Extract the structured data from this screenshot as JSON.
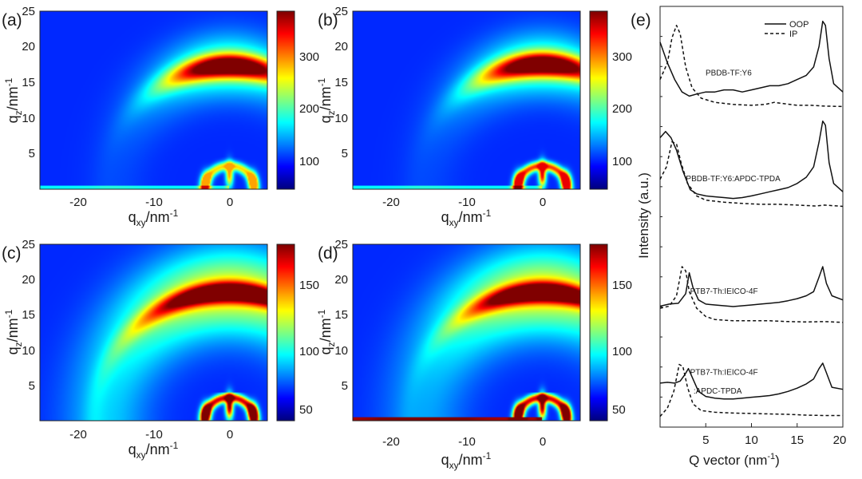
{
  "chart_data": [
    {
      "panel": "(a)",
      "type": "heatmap",
      "xlabel_main": "q",
      "xlabel_sub": "xy",
      "xlabel_unit": "/nm",
      "xlabel_exp": "-1",
      "ylabel_main": "q",
      "ylabel_sub": "z",
      "ylabel_unit": "/nm",
      "ylabel_exp": "-1",
      "xlim": [
        -25,
        5
      ],
      "ylim": [
        0,
        25
      ],
      "x_ticks": [
        "-20",
        "-10",
        "0"
      ],
      "y_ticks": [
        "5",
        "10",
        "15",
        "20",
        "25"
      ],
      "colorbar_range": [
        30,
        370
      ],
      "colorbar_ticks": [
        "100",
        "200",
        "300"
      ],
      "colorbar_tick_values": [
        100,
        200,
        300
      ],
      "features": {
        "arc_qz": 17.3,
        "arc_peak": 370,
        "arc_halfwidth": 5.5,
        "arc_shape": "compact",
        "near_origin_peak": 260,
        "near_origin_extent": 4.5,
        "film_line": "faint"
      }
    },
    {
      "panel": "(b)",
      "type": "heatmap",
      "xlabel_main": "q",
      "xlabel_sub": "xy",
      "xlabel_unit": "/nm",
      "xlabel_exp": "-1",
      "ylabel_main": "q",
      "ylabel_sub": "z",
      "ylabel_unit": "/nm",
      "ylabel_exp": "-1",
      "xlim": [
        -25,
        5
      ],
      "ylim": [
        0,
        25
      ],
      "x_ticks": [
        "-20",
        "-10",
        "0"
      ],
      "y_ticks": [
        "5",
        "10",
        "15",
        "20",
        "25"
      ],
      "colorbar_range": [
        30,
        370
      ],
      "colorbar_ticks": [
        "100",
        "200",
        "300"
      ],
      "colorbar_tick_values": [
        100,
        200,
        300
      ],
      "features": {
        "arc_qz": 17.5,
        "arc_peak": 370,
        "arc_halfwidth": 5.5,
        "arc_shape": "compact",
        "near_origin_peak": 330,
        "near_origin_extent": 4.8,
        "film_line": "faint"
      }
    },
    {
      "panel": "(c)",
      "type": "heatmap",
      "xlabel_main": "q",
      "xlabel_sub": "xy",
      "xlabel_unit": "/nm",
      "xlabel_exp": "-1",
      "ylabel_main": "q",
      "ylabel_sub": "z",
      "ylabel_unit": "/nm",
      "ylabel_exp": "-1",
      "xlim": [
        -25,
        5
      ],
      "ylim": [
        0,
        25
      ],
      "x_ticks": [
        "-20",
        "-10",
        "0"
      ],
      "y_ticks": [
        "5",
        "10",
        "15",
        "20",
        "25"
      ],
      "colorbar_range": [
        30,
        185
      ],
      "colorbar_ticks": [
        "50",
        "100",
        "150"
      ],
      "colorbar_tick_values": [
        50,
        100,
        150
      ],
      "features": {
        "arc_qz": 18.2,
        "arc_peak": 185,
        "arc_halfwidth": 7.5,
        "arc_shape": "broad",
        "near_origin_peak": 185,
        "near_origin_extent": 4.0,
        "film_line": "none"
      }
    },
    {
      "panel": "(d)",
      "type": "heatmap",
      "xlabel_main": "q",
      "xlabel_sub": "xy",
      "xlabel_unit": "/nm",
      "xlabel_exp": "-1",
      "ylabel_main": "q",
      "ylabel_sub": "z",
      "ylabel_unit": "/nm",
      "ylabel_exp": "-1",
      "xlim": [
        -25,
        5
      ],
      "ylim": [
        0,
        25
      ],
      "x_ticks": [
        "-20",
        "-10",
        "0"
      ],
      "y_ticks": [
        "5",
        "10",
        "15",
        "20",
        "25"
      ],
      "colorbar_range": [
        30,
        185
      ],
      "colorbar_ticks": [
        "50",
        "100",
        "150"
      ],
      "colorbar_tick_values": [
        50,
        100,
        150
      ],
      "features": {
        "arc_qz": 18.2,
        "arc_peak": 185,
        "arc_halfwidth": 6.5,
        "arc_shape": "broad",
        "near_origin_peak": 185,
        "near_origin_extent": 4.0,
        "film_line": "bright"
      }
    },
    {
      "panel": "(e)",
      "type": "line",
      "title": "",
      "xlabel": "Q vector (nm",
      "xlabel_exp": "-1",
      "xlabel_close": ")",
      "ylabel": "Intensity (a.u.)",
      "xlim": [
        0,
        20
      ],
      "ylim": [
        0,
        100
      ],
      "x_ticks": [
        "5",
        "10",
        "15",
        "20"
      ],
      "x_tick_values": [
        5,
        10,
        15,
        20
      ],
      "legend": [
        {
          "label": "OOP",
          "style": "solid"
        },
        {
          "label": "IP",
          "style": "dashed"
        }
      ],
      "legend_position": "top-right",
      "series": [
        {
          "name": "PBDB-TF:Y6 OOP",
          "group": "PBDB-TF:Y6",
          "style": "solid",
          "points": [
            [
              0,
              92
            ],
            [
              0.8,
              87
            ],
            [
              1.6,
              83
            ],
            [
              2.4,
              80
            ],
            [
              3.2,
              79
            ],
            [
              4,
              79.5
            ],
            [
              5,
              80
            ],
            [
              6,
              80
            ],
            [
              7,
              80.5
            ],
            [
              8,
              80.5
            ],
            [
              9,
              80
            ],
            [
              10,
              80.5
            ],
            [
              11,
              81
            ],
            [
              12,
              81.5
            ],
            [
              13,
              81.5
            ],
            [
              14,
              82
            ],
            [
              15,
              83
            ],
            [
              16,
              84
            ],
            [
              16.8,
              86
            ],
            [
              17.4,
              91
            ],
            [
              17.8,
              97
            ],
            [
              18.1,
              96
            ],
            [
              18.5,
              88
            ],
            [
              19,
              82
            ],
            [
              20,
              80
            ]
          ]
        },
        {
          "name": "PBDB-TF:Y6 IP",
          "group": "PBDB-TF:Y6",
          "style": "dashed",
          "points": [
            [
              0,
              83
            ],
            [
              0.8,
              87
            ],
            [
              1.3,
              93
            ],
            [
              1.8,
              96
            ],
            [
              2.2,
              94
            ],
            [
              2.8,
              86
            ],
            [
              3.5,
              81
            ],
            [
              4.5,
              78.5
            ],
            [
              6,
              77.5
            ],
            [
              8,
              77
            ],
            [
              10,
              76.8
            ],
            [
              11.5,
              77
            ],
            [
              12.5,
              77.5
            ],
            [
              13.5,
              77.2
            ],
            [
              15,
              76.8
            ],
            [
              16.5,
              76.8
            ],
            [
              18,
              76.6
            ],
            [
              20,
              76.5
            ]
          ]
        },
        {
          "name": "PBDB-TF:Y6:APDC-TPDA OOP",
          "group": "PBDB-TF:Y6:APDC-TPDA",
          "style": "solid",
          "points": [
            [
              0,
              69
            ],
            [
              0.6,
              70.5
            ],
            [
              1.2,
              69
            ],
            [
              1.8,
              66
            ],
            [
              2.5,
              61
            ],
            [
              3.3,
              56.5
            ],
            [
              4,
              55.5
            ],
            [
              5,
              55
            ],
            [
              6,
              54.8
            ],
            [
              7,
              54.6
            ],
            [
              8,
              54.4
            ],
            [
              9,
              54.6
            ],
            [
              10,
              55
            ],
            [
              11,
              55.5
            ],
            [
              12,
              56
            ],
            [
              13,
              56.5
            ],
            [
              14,
              57
            ],
            [
              15,
              58
            ],
            [
              16,
              59.5
            ],
            [
              16.8,
              62
            ],
            [
              17.4,
              68
            ],
            [
              17.8,
              73
            ],
            [
              18.1,
              72
            ],
            [
              18.5,
              63
            ],
            [
              19,
              58
            ],
            [
              20,
              56
            ]
          ]
        },
        {
          "name": "PBDB-TF:Y6:APDC-TPDA IP",
          "group": "PBDB-TF:Y6:APDC-TPDA",
          "style": "dashed",
          "points": [
            [
              0,
              59
            ],
            [
              0.7,
              62
            ],
            [
              1.3,
              68
            ],
            [
              1.8,
              67.5
            ],
            [
              2.3,
              63
            ],
            [
              3,
              58
            ],
            [
              4,
              55
            ],
            [
              5,
              54
            ],
            [
              7,
              53.5
            ],
            [
              9,
              53.2
            ],
            [
              11,
              53
            ],
            [
              13,
              53
            ],
            [
              15,
              52.8
            ],
            [
              17,
              52.6
            ],
            [
              18,
              52.8
            ],
            [
              20,
              52.5
            ]
          ]
        },
        {
          "name": "PTB7-Th:IEICO-4F OOP",
          "group": "PTB7-Th:IEICO-4F",
          "style": "solid",
          "points": [
            [
              0,
              28.5
            ],
            [
              1,
              29
            ],
            [
              2,
              29.2
            ],
            [
              2.8,
              31.5
            ],
            [
              3.2,
              36.5
            ],
            [
              3.6,
              33
            ],
            [
              4.2,
              30
            ],
            [
              5,
              29
            ],
            [
              6,
              28.8
            ],
            [
              7,
              28.6
            ],
            [
              8,
              28.4
            ],
            [
              9,
              28.6
            ],
            [
              10,
              28.8
            ],
            [
              11,
              29
            ],
            [
              12,
              29.2
            ],
            [
              13,
              29.4
            ],
            [
              14,
              29.8
            ],
            [
              15,
              30.3
            ],
            [
              16,
              31
            ],
            [
              16.8,
              32
            ],
            [
              17.4,
              35.5
            ],
            [
              17.8,
              38
            ],
            [
              18.2,
              34
            ],
            [
              18.8,
              31
            ],
            [
              20,
              30
            ]
          ]
        },
        {
          "name": "PTB7-Th:IEICO-4F IP",
          "group": "PTB7-Th:IEICO-4F",
          "style": "dashed",
          "points": [
            [
              0,
              28
            ],
            [
              1,
              28.5
            ],
            [
              1.8,
              31
            ],
            [
              2.4,
              38
            ],
            [
              2.8,
              37
            ],
            [
              3.2,
              32
            ],
            [
              4,
              28
            ],
            [
              5,
              26
            ],
            [
              6,
              25.3
            ],
            [
              8,
              25
            ],
            [
              10,
              25
            ],
            [
              12,
              25
            ],
            [
              14,
              24.8
            ],
            [
              16,
              24.7
            ],
            [
              18,
              24.8
            ],
            [
              20,
              24.6
            ]
          ]
        },
        {
          "name": "PTB7-Th:IEICO-4F:APDC-TPDA OOP",
          "group": "PTB7-Th:IEICO-4F:APDC-TPDA",
          "style": "solid",
          "points": [
            [
              0,
              10
            ],
            [
              0.8,
              10.2
            ],
            [
              1.6,
              10
            ],
            [
              2.2,
              10.5
            ],
            [
              2.7,
              12
            ],
            [
              3.1,
              13.5
            ],
            [
              3.6,
              11
            ],
            [
              4.2,
              8
            ],
            [
              5,
              6.8
            ],
            [
              6,
              6.4
            ],
            [
              7,
              6.2
            ],
            [
              8,
              6.2
            ],
            [
              9,
              6.4
            ],
            [
              10,
              6.6
            ],
            [
              11,
              6.8
            ],
            [
              12,
              7
            ],
            [
              13,
              7.4
            ],
            [
              14,
              8
            ],
            [
              15,
              8.8
            ],
            [
              16,
              9.8
            ],
            [
              16.8,
              11
            ],
            [
              17.4,
              13.5
            ],
            [
              17.8,
              14.8
            ],
            [
              18.2,
              12.5
            ],
            [
              18.8,
              9
            ],
            [
              20,
              8.5
            ]
          ]
        },
        {
          "name": "PTB7-Th:IEICO-4F:APDC-TPDA IP",
          "group": "PTB7-Th:IEICO-4F:APDC-TPDA",
          "style": "dashed",
          "points": [
            [
              0,
              2
            ],
            [
              0.8,
              4
            ],
            [
              1.5,
              8
            ],
            [
              2.1,
              14.5
            ],
            [
              2.5,
              14
            ],
            [
              3,
              9
            ],
            [
              3.6,
              5
            ],
            [
              4.5,
              3.4
            ],
            [
              6,
              3
            ],
            [
              8,
              2.8
            ],
            [
              10,
              2.7
            ],
            [
              12,
              2.6
            ],
            [
              14,
              2.5
            ],
            [
              16,
              2.3
            ],
            [
              18,
              2.2
            ],
            [
              20,
              2.2
            ]
          ]
        }
      ],
      "curve_labels": [
        {
          "text": "PBDB-TF:Y6",
          "x": 7.5,
          "y": 84
        },
        {
          "text": "PBDB-TF:Y6:APDC-TPDA",
          "x": 8,
          "y": 58.5
        },
        {
          "text": "PTB7-Th:IEICO-4F",
          "x": 7,
          "y": 31.5
        },
        {
          "text": "PTB7-Th:IEICO-4F",
          "x": 7,
          "y": 12
        },
        {
          "text": ":APDC-TPDA",
          "x": 6.3,
          "y": 7.5
        }
      ]
    }
  ]
}
